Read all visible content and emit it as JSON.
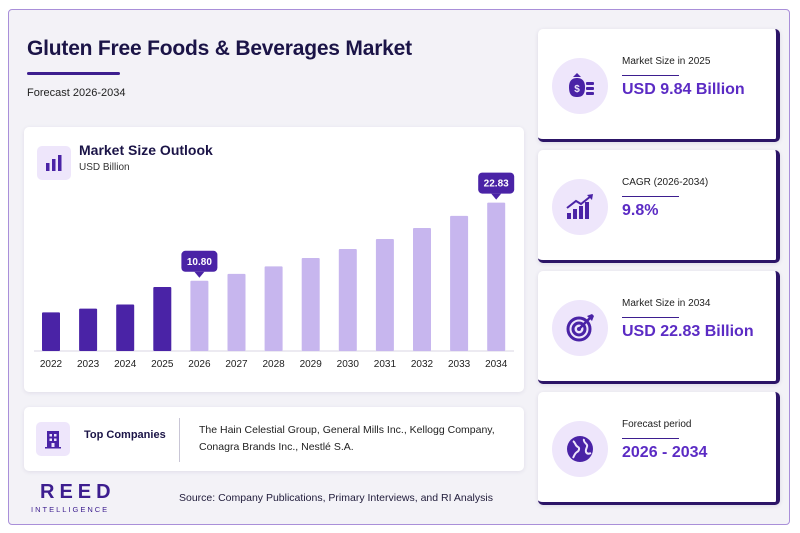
{
  "header": {
    "title": "Gluten Free Foods & Beverages Market",
    "subtitle": "Forecast 2026-2034"
  },
  "chart_data": {
    "type": "bar",
    "title": "Market Size Outlook",
    "unit": "USD Billion",
    "categories": [
      "2022",
      "2023",
      "2024",
      "2025",
      "2026",
      "2027",
      "2028",
      "2029",
      "2030",
      "2031",
      "2032",
      "2033",
      "2034"
    ],
    "values": [
      5.94,
      6.52,
      7.16,
      9.84,
      10.8,
      11.86,
      13.02,
      14.3,
      15.7,
      17.24,
      18.93,
      20.79,
      22.83
    ],
    "highlight": [
      {
        "index": 4,
        "label": "10.80"
      },
      {
        "index": 12,
        "label": "22.83"
      }
    ],
    "historical_color": "#4a23a6",
    "forecast_color": "#c7b6ee",
    "callout_color": "#4a23a6",
    "xlabel": "",
    "ylabel": "",
    "ylim": [
      0,
      24
    ]
  },
  "companies": {
    "label": "Top Companies",
    "text": "The Hain Celestial Group, General Mills Inc., Kellogg Company, Conagra Brands Inc., Nestlé S.A."
  },
  "branding": {
    "logo_main": "REED",
    "logo_sub": "INTELLIGENCE",
    "source": "Source: Company Publications, Primary Interviews, and RI Analysis"
  },
  "stats": [
    {
      "label": "Market Size in 2025",
      "value": "USD 9.84 Billion",
      "icon": "money-bag-icon"
    },
    {
      "label": "CAGR (2026-2034)",
      "value": "9.8%",
      "icon": "growth-chart-icon"
    },
    {
      "label": "Market Size in 2034",
      "value": "USD 22.83 Billion",
      "icon": "target-icon"
    },
    {
      "label": "Forecast period",
      "value": "2026 - 2034",
      "icon": "globe-icon"
    }
  ],
  "colors": {
    "brand": "#3d1e8f",
    "accent": "#5b2bc4",
    "icon_bg": "#eee6fb"
  }
}
